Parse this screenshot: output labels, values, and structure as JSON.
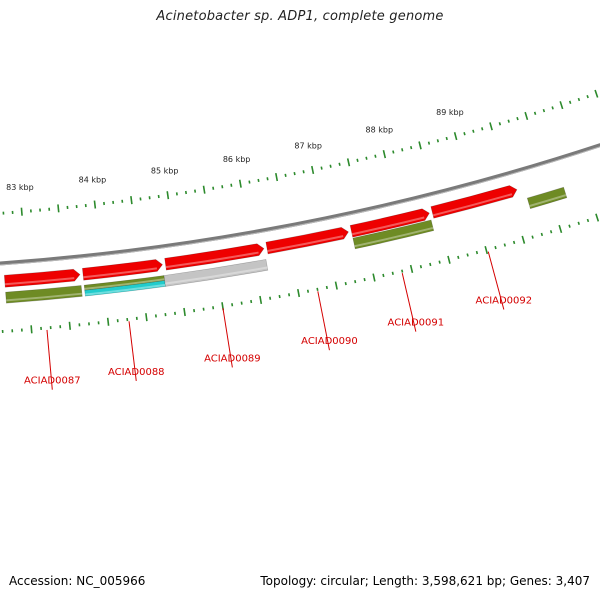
{
  "title": "Acinetobacter sp. ADP1, complete genome",
  "footer": {
    "accession": "Accession: NC_005966",
    "summary": "Topology: circular; Length: 3,598,621 bp; Genes: 3,407"
  },
  "colors": {
    "backbone": "#7a7a7a",
    "cds_red": "#ee0000",
    "olive": "#6e8b24",
    "blue": "#0011dd",
    "cyan": "#22cccc",
    "gray": "#c4c4c4",
    "tick": "#2c8a2c",
    "label": "#d40000"
  },
  "scale": {
    "unit": "kbp",
    "labels": [
      {
        "value": 83,
        "text": "83 kbp"
      },
      {
        "value": 84,
        "text": "84 kbp"
      },
      {
        "value": 85,
        "text": "85 kbp"
      },
      {
        "value": 86,
        "text": "86 kbp"
      },
      {
        "value": 87,
        "text": "87 kbp"
      },
      {
        "value": 88,
        "text": "88 kbp"
      },
      {
        "value": 89,
        "text": "89 kbp"
      }
    ]
  },
  "genes": [
    {
      "locus": "ACIAD0087",
      "start": 82.7,
      "end": 83.7
    },
    {
      "locus": "ACIAD0088",
      "start": 83.74,
      "end": 84.8
    },
    {
      "locus": "ACIAD0089",
      "start": 84.84,
      "end": 86.16
    },
    {
      "locus": "ACIAD0090",
      "start": 86.2,
      "end": 87.3
    },
    {
      "locus": "ACIAD0091",
      "start": 87.34,
      "end": 88.4
    },
    {
      "locus": "ACIAD0092",
      "start": 88.44,
      "end": 89.6
    }
  ]
}
